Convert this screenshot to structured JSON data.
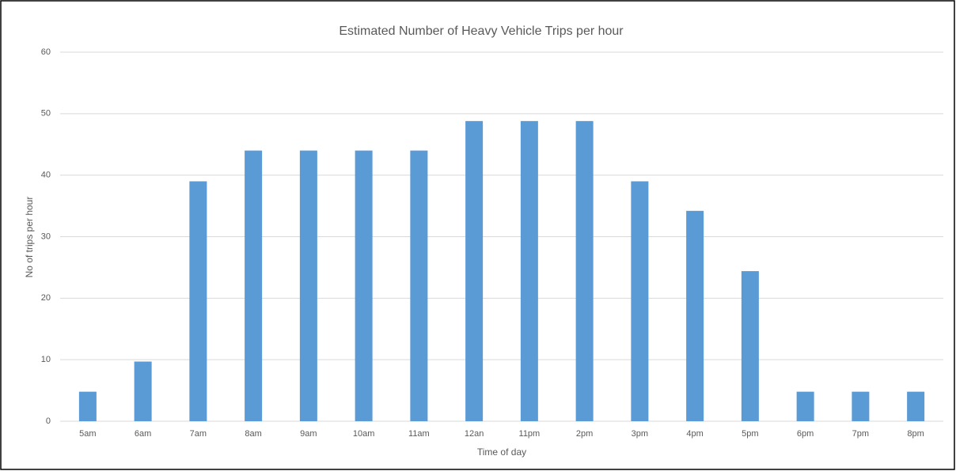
{
  "chart_data": {
    "type": "bar",
    "title": "Estimated Number of Heavy Vehicle  Trips per hour",
    "x_label": "Time of day",
    "y_label": "No of trips per hour",
    "categories": [
      "5am",
      "6am",
      "7am",
      "8am",
      "9am",
      "10am",
      "11am",
      "12an",
      "11pm",
      "2pm",
      "3pm",
      "4pm",
      "5pm",
      "6pm",
      "7pm",
      "8pm"
    ],
    "values": [
      4.8,
      9.7,
      39,
      44,
      44,
      44,
      44,
      48.8,
      48.8,
      48.8,
      39,
      34.2,
      24.4,
      4.8,
      4.8,
      4.8
    ],
    "color": "#5b9bd5",
    "ylim": [
      0,
      60
    ],
    "yticks": [
      0,
      10,
      20,
      30,
      40,
      50,
      60
    ],
    "grid": true
  }
}
